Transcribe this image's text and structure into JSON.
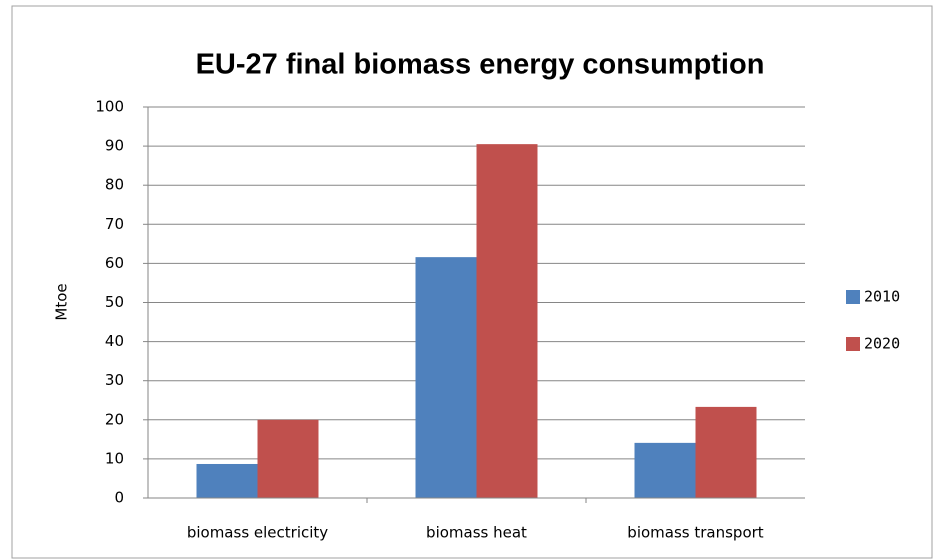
{
  "chart_data": {
    "type": "bar",
    "title": "EU-27 final biomass  energy consumption",
    "y_label": "Mtoe",
    "categories": [
      "biomass electricity",
      "biomass heat",
      "biomass transport"
    ],
    "series": [
      {
        "name": "2010",
        "color": "#4f81bd",
        "values": [
          8.7,
          61.6,
          14.1
        ]
      },
      {
        "name": "2020",
        "color": "#c0504d",
        "values": [
          20,
          90.5,
          23.3
        ]
      }
    ],
    "ylim": [
      0,
      100
    ],
    "yticks": [
      0,
      10,
      20,
      30,
      40,
      50,
      60,
      70,
      80,
      90,
      100
    ],
    "grid": true,
    "legend": "right"
  }
}
